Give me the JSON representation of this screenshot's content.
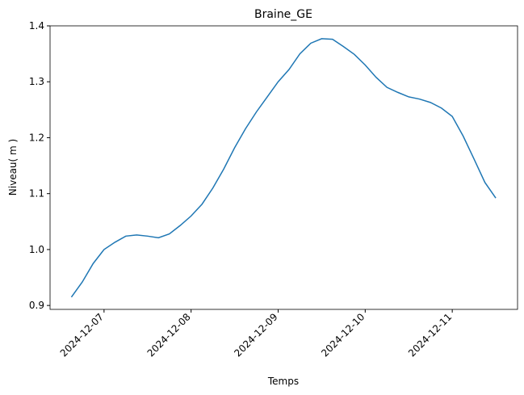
{
  "chart_data": {
    "type": "line",
    "title": "Braine_GE",
    "x_label": "Temps",
    "y_label": "Niveau( m )",
    "x": [
      "2024-12-06T15:00",
      "2024-12-06T18:00",
      "2024-12-06T21:00",
      "2024-12-07T00:00",
      "2024-12-07T03:00",
      "2024-12-07T06:00",
      "2024-12-07T09:00",
      "2024-12-07T12:00",
      "2024-12-07T15:00",
      "2024-12-07T18:00",
      "2024-12-07T21:00",
      "2024-12-08T00:00",
      "2024-12-08T03:00",
      "2024-12-08T06:00",
      "2024-12-08T09:00",
      "2024-12-08T12:00",
      "2024-12-08T15:00",
      "2024-12-08T18:00",
      "2024-12-08T21:00",
      "2024-12-09T00:00",
      "2024-12-09T03:00",
      "2024-12-09T06:00",
      "2024-12-09T09:00",
      "2024-12-09T12:00",
      "2024-12-09T15:00",
      "2024-12-09T18:00",
      "2024-12-09T21:00",
      "2024-12-10T00:00",
      "2024-12-10T03:00",
      "2024-12-10T06:00",
      "2024-12-10T09:00",
      "2024-12-10T12:00",
      "2024-12-10T15:00",
      "2024-12-10T18:00",
      "2024-12-10T21:00",
      "2024-12-11T00:00",
      "2024-12-11T03:00",
      "2024-12-11T06:00",
      "2024-12-11T09:00",
      "2024-12-11T12:00"
    ],
    "series": [
      {
        "color": "#1f77b4",
        "values": [
          0.915,
          0.942,
          0.975,
          1.0,
          1.013,
          1.024,
          1.026,
          1.024,
          1.021,
          1.028,
          1.043,
          1.06,
          1.081,
          1.11,
          1.144,
          1.182,
          1.216,
          1.246,
          1.273,
          1.3,
          1.322,
          1.35,
          1.369,
          1.377,
          1.376,
          1.363,
          1.349,
          1.33,
          1.308,
          1.29,
          1.281,
          1.273,
          1.269,
          1.263,
          1.253,
          1.238,
          1.203,
          1.162,
          1.12,
          1.092
        ]
      }
    ],
    "xlim": [
      "2024-12-06T09:07",
      "2024-12-11T18:00"
    ],
    "xticks": [
      "2024-12-07",
      "2024-12-08",
      "2024-12-09",
      "2024-12-10",
      "2024-12-11"
    ],
    "ylim": [
      0.893,
      1.4
    ],
    "yticks": [
      0.9,
      {
        "value": 1.0,
        "label": "1.0"
      },
      1.1,
      1.2,
      1.3,
      1.4
    ]
  }
}
